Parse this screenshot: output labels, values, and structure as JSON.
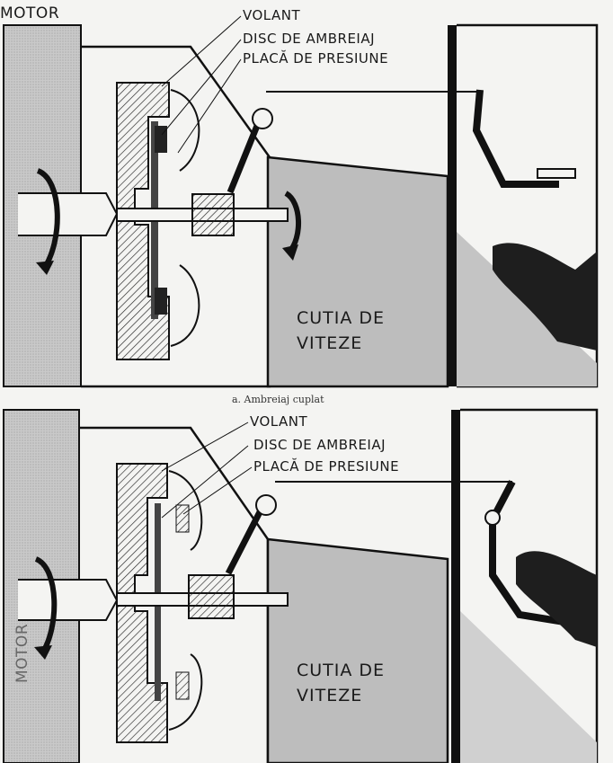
{
  "top_panel": {
    "engine_label": "MOTOR",
    "part_labels": [
      "VOLANT",
      "DISC DE AMBREIAJ",
      "PLACĂ DE PRESIUNE"
    ],
    "gearbox_label": [
      "CUTIA DE",
      "VITEZE"
    ],
    "caption": "a. Ambreiaj cuplat"
  },
  "bottom_panel": {
    "engine_label": "MOTOR",
    "part_labels": [
      "VOLANT",
      "DISC DE AMBREIAJ",
      "PLACĂ DE PRESIUNE"
    ],
    "gearbox_label": [
      "CUTIA DE",
      "VITEZE"
    ]
  },
  "colors": {
    "ink": "#1a1a1a",
    "engine_fill": "#c8c8c8",
    "gearbox_fill": "#bdbdbd",
    "paper": "#f4f4f2"
  }
}
